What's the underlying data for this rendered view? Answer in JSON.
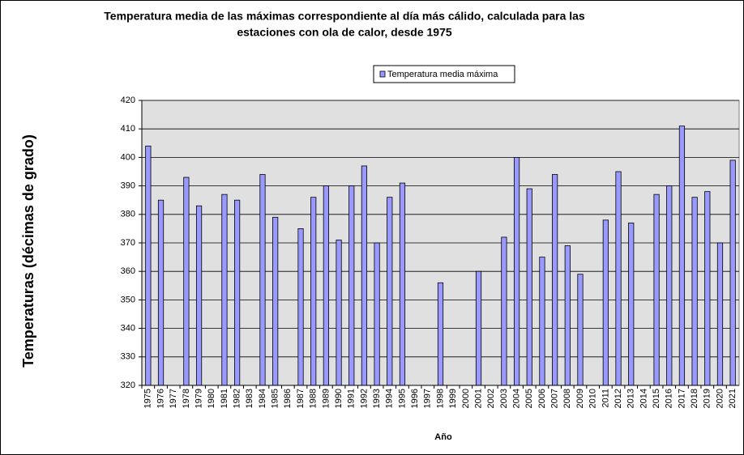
{
  "chart_data": {
    "type": "bar",
    "title": [
      "Temperatura media de las máximas correspondiente al día más cálido, calculada para las",
      "estaciones con ola de calor, desde 1975"
    ],
    "x_label": "Año",
    "y_label": "Temperaturas (décimas de grado)",
    "categories": [
      "1975",
      "1976",
      "1977",
      "1978",
      "1979",
      "1980",
      "1981",
      "1982",
      "1983",
      "1984",
      "1985",
      "1986",
      "1987",
      "1988",
      "1989",
      "1990",
      "1991",
      "1992",
      "1993",
      "1994",
      "1995",
      "1996",
      "1997",
      "1998",
      "1999",
      "2000",
      "2001",
      "2002",
      "2003",
      "2004",
      "2005",
      "2006",
      "2007",
      "2008",
      "2009",
      "2010",
      "2011",
      "2012",
      "2013",
      "2014",
      "2015",
      "2016",
      "2017",
      "2018",
      "2019",
      "2020",
      "2021"
    ],
    "series": [
      {
        "name": "Temperatura media máxima",
        "color": "#9999ff",
        "values": [
          404,
          385,
          null,
          393,
          383,
          null,
          387,
          385,
          null,
          394,
          379,
          null,
          375,
          386,
          390,
          371,
          390,
          397,
          370,
          386,
          391,
          null,
          null,
          356,
          null,
          null,
          360,
          null,
          372,
          400,
          389,
          365,
          394,
          369,
          359,
          null,
          378,
          395,
          377,
          null,
          387,
          390,
          411,
          386,
          388,
          370,
          399
        ]
      }
    ],
    "ylim": [
      320,
      420
    ],
    "yticks": [
      320,
      330,
      340,
      350,
      360,
      370,
      380,
      390,
      400,
      410,
      420
    ],
    "grid": true
  }
}
